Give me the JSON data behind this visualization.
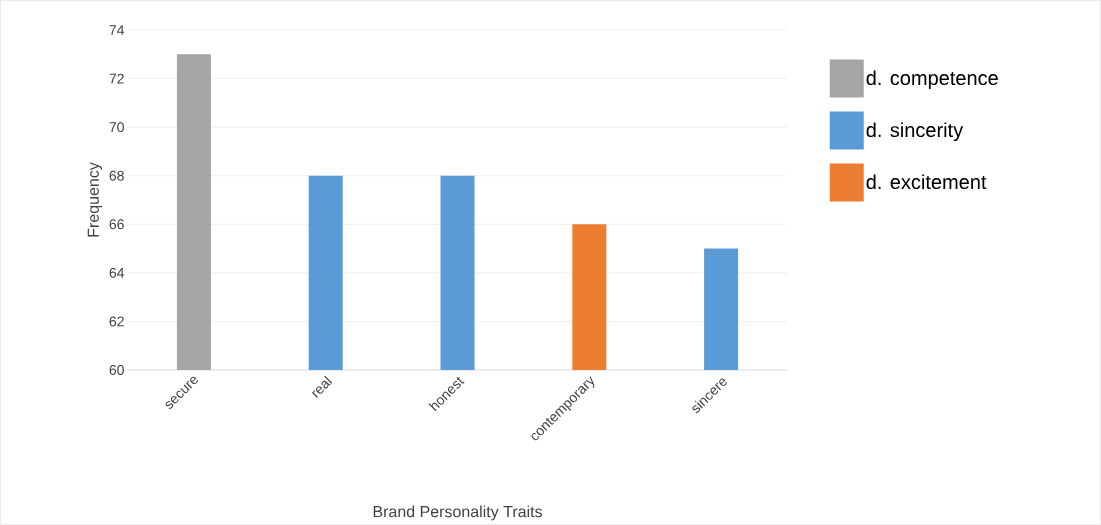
{
  "chart_data": {
    "type": "bar",
    "xlabel": "Brand Personality Traits",
    "ylabel": "Frequency",
    "categories": [
      "secure",
      "real",
      "honest",
      "contemporary",
      "sincere"
    ],
    "series": [
      {
        "name": "d. competence",
        "color": "#a5a5a5",
        "values": [
          73,
          null,
          null,
          null,
          null
        ]
      },
      {
        "name": "d. sincerity",
        "color": "#5b9bd5",
        "values": [
          null,
          68,
          68,
          null,
          65
        ]
      },
      {
        "name": "d. excitement",
        "color": "#ed7d31",
        "values": [
          null,
          null,
          null,
          66,
          null
        ]
      }
    ],
    "ylim": [
      60,
      74
    ],
    "yticks": [
      60,
      62,
      64,
      66,
      68,
      70,
      72,
      74
    ],
    "grid": "y",
    "legend": "right"
  }
}
